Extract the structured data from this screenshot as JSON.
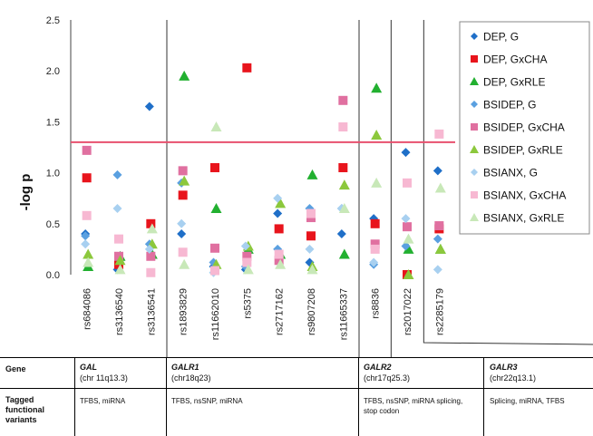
{
  "chart_data": {
    "type": "scatter",
    "ylabel": "-log p",
    "ylim": [
      0,
      2.5
    ],
    "yticks": [
      "0.0",
      "0.5",
      "1.0",
      "1.5",
      "2.0",
      "2.5"
    ],
    "threshold": 1.3,
    "threshold_color": "#e8506e",
    "categories": [
      "rs684086",
      "rs3136540",
      "rs3136541",
      "rs1893829",
      "rs11662010",
      "rs5375",
      "rs2717162",
      "rs9807208",
      "rs11665337",
      "rs8836",
      "rs2017022",
      "rs2285179"
    ],
    "group_separators_after": [
      2,
      8,
      9
    ],
    "series": [
      {
        "name": "DEP, G",
        "color": "#1f6fc8",
        "marker": "diamond",
        "values": [
          0.4,
          0.05,
          1.65,
          0.4,
          0.08,
          0.05,
          0.6,
          0.12,
          0.4,
          0.55,
          1.2,
          1.02
        ]
      },
      {
        "name": "DEP, GxCHA",
        "color": "#e8141c",
        "marker": "square",
        "values": [
          0.95,
          0.1,
          0.5,
          0.78,
          1.05,
          2.03,
          0.45,
          0.38,
          1.05,
          0.5,
          0.0,
          0.45
        ]
      },
      {
        "name": "DEP, GxRLE",
        "color": "#22b030",
        "marker": "triangle",
        "values": [
          0.08,
          0.18,
          0.2,
          1.95,
          0.65,
          0.25,
          0.2,
          0.98,
          0.2,
          1.83,
          0.25,
          0.25
        ]
      },
      {
        "name": "BSIDEP, G",
        "color": "#5aa0e0",
        "marker": "diamond",
        "values": [
          0.38,
          0.98,
          0.3,
          0.9,
          0.12,
          0.08,
          0.25,
          0.65,
          0.65,
          0.1,
          0.28,
          0.35
        ]
      },
      {
        "name": "BSIDEP, GxCHA",
        "color": "#e070a0",
        "marker": "square",
        "values": [
          1.22,
          0.18,
          0.18,
          1.02,
          0.26,
          0.18,
          0.14,
          0.56,
          1.71,
          0.3,
          0.47,
          0.48
        ]
      },
      {
        "name": "BSIDEP, GxRLE",
        "color": "#8cc83c",
        "marker": "triangle",
        "values": [
          0.2,
          0.14,
          0.3,
          0.92,
          0.1,
          0.28,
          0.7,
          0.08,
          0.88,
          1.37,
          0.0,
          0.25
        ]
      },
      {
        "name": "BSIANX, G",
        "color": "#a8d0f0",
        "marker": "diamond",
        "values": [
          0.3,
          0.65,
          0.25,
          0.5,
          0.02,
          0.28,
          0.75,
          0.25,
          0.65,
          0.12,
          0.55,
          0.05
        ]
      },
      {
        "name": "BSIANX, GxCHA",
        "color": "#f7b8d2",
        "marker": "square",
        "values": [
          0.58,
          0.35,
          0.02,
          0.22,
          0.04,
          0.12,
          0.2,
          0.6,
          1.45,
          0.25,
          0.9,
          1.38
        ]
      },
      {
        "name": "BSIANX, GxRLE",
        "color": "#c8e8b8",
        "marker": "triangle",
        "values": [
          0.12,
          0.05,
          0.45,
          0.1,
          1.45,
          0.05,
          0.1,
          0.05,
          0.65,
          0.9,
          0.35,
          0.85
        ]
      }
    ],
    "legend_position": "top-right"
  },
  "table": {
    "row_gene_label": "Gene",
    "row_variants_label": "Tagged functional variants",
    "groups": [
      {
        "gene": "GAL",
        "location": "(chr 11q13.3)",
        "variants": "TFBS, miRNA"
      },
      {
        "gene": "GALR1",
        "location": "(chr18q23)",
        "variants": "TFBS, nsSNP, miRNA"
      },
      {
        "gene": "GALR2",
        "location": "(chr17q25.3)",
        "variants": "TFBS, nsSNP, miRNA splicing, stop codon"
      },
      {
        "gene": "GALR3",
        "location": "(chr22q13.1)",
        "variants": "Splicing, miRNA, TFBS"
      }
    ]
  }
}
